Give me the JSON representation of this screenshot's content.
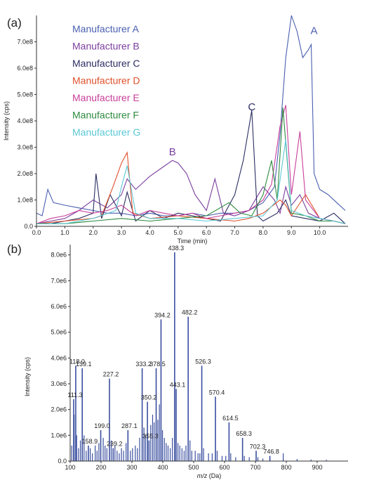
{
  "panel_labels": [
    "(a)",
    "(b)"
  ],
  "chart_data": [
    {
      "type": "line",
      "panel": "(a)",
      "xlabel": "Time (min)",
      "ylabel": "Intensity (cps)",
      "xlim": [
        0,
        11
      ],
      "ylim": [
        0,
        800000000.0
      ],
      "xticks": [
        0.0,
        1.0,
        2.0,
        3.0,
        4.0,
        5.0,
        6.0,
        7.0,
        8.0,
        9.0,
        10.0
      ],
      "xtick_labels": [
        "0.0",
        "1.0",
        "2.0",
        "3.0",
        "4.0",
        "5.0",
        "6.0",
        "7.0",
        "8.0",
        "9.0",
        "10.0"
      ],
      "yticks": [
        0,
        100000000.0,
        200000000.0,
        300000000.0,
        400000000.0,
        500000000.0,
        600000000.0,
        700000000.0
      ],
      "ytick_labels": [
        "0.0",
        "1.0e8",
        "2.0e8",
        "3.0e8",
        "4.0e8",
        "5.0e8",
        "6.0e8",
        "7.0e8"
      ],
      "legend_position": "top-left",
      "annotations": [
        {
          "text": "A",
          "x": 9.8,
          "y": 730000000.0,
          "color": "#4a5fb0"
        },
        {
          "text": "B",
          "x": 4.8,
          "y": 270000000.0,
          "color": "#7b3f9e"
        },
        {
          "text": "C",
          "x": 7.6,
          "y": 440000000.0,
          "color": "#2b2d62"
        }
      ],
      "series": [
        {
          "name": "Manufacturer  A",
          "color": "#4a5fb0",
          "x": [
            0,
            0.2,
            0.4,
            0.6,
            1.0,
            1.5,
            2.0,
            2.5,
            3.0,
            3.5,
            4.0,
            4.5,
            5.0,
            5.5,
            6.0,
            6.5,
            7.0,
            7.5,
            8.0,
            8.4,
            8.6,
            8.8,
            9.0,
            9.2,
            9.4,
            9.6,
            9.7,
            9.8,
            10.0,
            10.3,
            10.6,
            10.9
          ],
          "y": [
            50000000.0,
            40000000.0,
            140000000.0,
            90000000.0,
            80000000.0,
            70000000.0,
            60000000.0,
            50000000.0,
            50000000.0,
            40000000.0,
            50000000.0,
            40000000.0,
            40000000.0,
            50000000.0,
            40000000.0,
            50000000.0,
            50000000.0,
            60000000.0,
            90000000.0,
            150000000.0,
            350000000.0,
            640000000.0,
            800000000.0,
            740000000.0,
            640000000.0,
            670000000.0,
            690000000.0,
            200000000.0,
            140000000.0,
            120000000.0,
            90000000.0,
            60000000.0
          ]
        },
        {
          "name": "Manufacturer  B",
          "color": "#7b3f9e",
          "x": [
            0,
            0.5,
            1.0,
            1.5,
            2.0,
            2.5,
            3.0,
            3.2,
            3.5,
            4.0,
            4.4,
            4.8,
            5.0,
            5.3,
            5.6,
            6.0,
            6.3,
            6.6,
            7.0,
            7.5,
            8.0,
            8.4,
            8.6,
            8.8,
            9.0,
            9.3,
            9.6,
            10.0,
            10.5,
            10.9
          ],
          "y": [
            10000000.0,
            20000000.0,
            30000000.0,
            60000000.0,
            100000000.0,
            70000000.0,
            120000000.0,
            180000000.0,
            140000000.0,
            190000000.0,
            220000000.0,
            250000000.0,
            240000000.0,
            200000000.0,
            120000000.0,
            60000000.0,
            180000000.0,
            50000000.0,
            40000000.0,
            60000000.0,
            150000000.0,
            100000000.0,
            50000000.0,
            150000000.0,
            80000000.0,
            120000000.0,
            50000000.0,
            30000000.0,
            20000000.0,
            10000000.0
          ]
        },
        {
          "name": "Manufacturer  C",
          "color": "#2b2d62",
          "x": [
            0,
            0.5,
            1.0,
            1.5,
            2.0,
            2.1,
            2.3,
            2.6,
            3.0,
            3.2,
            3.5,
            4.0,
            4.5,
            5.0,
            5.5,
            6.0,
            6.5,
            7.0,
            7.3,
            7.6,
            7.8,
            8.0,
            8.5,
            8.8,
            9.0,
            9.5,
            10.0,
            10.5,
            10.9
          ],
          "y": [
            10000000.0,
            10000000.0,
            20000000.0,
            30000000.0,
            50000000.0,
            200000000.0,
            30000000.0,
            120000000.0,
            40000000.0,
            130000000.0,
            20000000.0,
            60000000.0,
            30000000.0,
            50000000.0,
            40000000.0,
            30000000.0,
            20000000.0,
            120000000.0,
            250000000.0,
            440000000.0,
            40000000.0,
            20000000.0,
            50000000.0,
            100000000.0,
            40000000.0,
            30000000.0,
            20000000.0,
            50000000.0,
            10000000.0
          ]
        },
        {
          "name": "Manufacturer  D",
          "color": "#e0502b",
          "x": [
            0,
            1.0,
            2.0,
            2.3,
            2.7,
            3.0,
            3.2,
            3.4,
            4.0,
            5.0,
            6.0,
            7.0,
            7.5,
            8.0,
            8.6,
            8.8,
            9.0,
            9.5,
            10.0,
            10.5,
            10.9
          ],
          "y": [
            10000000.0,
            20000000.0,
            30000000.0,
            40000000.0,
            150000000.0,
            240000000.0,
            280000000.0,
            50000000.0,
            30000000.0,
            40000000.0,
            30000000.0,
            20000000.0,
            30000000.0,
            50000000.0,
            100000000.0,
            80000000.0,
            40000000.0,
            120000000.0,
            30000000.0,
            20000000.0,
            10000000.0
          ]
        },
        {
          "name": "Manufacturer  E",
          "color": "#c83f9b",
          "x": [
            0,
            0.5,
            1.0,
            1.5,
            2.0,
            2.5,
            3.0,
            3.5,
            4.0,
            4.5,
            5.0,
            5.5,
            6.0,
            6.5,
            7.0,
            7.5,
            8.0,
            8.3,
            8.6,
            8.8,
            9.0,
            9.3,
            9.5,
            10.0,
            10.5,
            10.9
          ],
          "y": [
            10000000.0,
            30000000.0,
            40000000.0,
            60000000.0,
            50000000.0,
            60000000.0,
            80000000.0,
            40000000.0,
            60000000.0,
            50000000.0,
            40000000.0,
            50000000.0,
            30000000.0,
            40000000.0,
            50000000.0,
            60000000.0,
            100000000.0,
            160000000.0,
            380000000.0,
            460000000.0,
            120000000.0,
            360000000.0,
            100000000.0,
            30000000.0,
            20000000.0,
            10000000.0
          ]
        },
        {
          "name": "Manufacturer  F",
          "color": "#2e8b3f",
          "x": [
            0,
            1.0,
            2.0,
            3.0,
            4.0,
            5.0,
            6.0,
            6.8,
            7.2,
            7.6,
            8.0,
            8.3,
            8.5,
            8.7,
            9.0,
            9.5,
            10.0,
            10.5,
            10.9
          ],
          "y": [
            10000000.0,
            10000000.0,
            20000000.0,
            30000000.0,
            20000000.0,
            30000000.0,
            40000000.0,
            90000000.0,
            50000000.0,
            40000000.0,
            120000000.0,
            250000000.0,
            100000000.0,
            450000000.0,
            50000000.0,
            40000000.0,
            20000000.0,
            20000000.0,
            10000000.0
          ]
        },
        {
          "name": "Manufacturer  G",
          "color": "#5bc8d6",
          "x": [
            0,
            1.0,
            2.0,
            2.8,
            3.0,
            3.2,
            3.5,
            4.0,
            5.0,
            6.0,
            7.0,
            8.0,
            8.5,
            8.8,
            9.0,
            9.5,
            10.0,
            10.5,
            10.9
          ],
          "y": [
            10000000.0,
            10000000.0,
            30000000.0,
            60000000.0,
            150000000.0,
            230000000.0,
            50000000.0,
            30000000.0,
            30000000.0,
            20000000.0,
            30000000.0,
            40000000.0,
            100000000.0,
            330000000.0,
            60000000.0,
            40000000.0,
            30000000.0,
            20000000.0,
            10000000.0
          ]
        }
      ]
    },
    {
      "type": "bar",
      "panel": "(b)",
      "xlabel_italic": "m/z",
      "xlabel_rest": " (Da)",
      "ylabel": "Intensity (cps)",
      "xlim": [
        100,
        1000
      ],
      "ylim": [
        0,
        8400000.0
      ],
      "xticks": [
        100,
        200,
        300,
        400,
        500,
        600,
        700,
        800,
        900
      ],
      "xtick_labels": [
        "100",
        "200",
        "300",
        "400",
        "500",
        "600",
        "700",
        "800",
        "900"
      ],
      "yticks": [
        0,
        1000000.0,
        2000000.0,
        3000000.0,
        4000000.0,
        5000000.0,
        6000000.0,
        7000000.0,
        8000000.0
      ],
      "ytick_labels": [
        "0.0",
        "1.0e6",
        "2.0e6",
        "3.0e6",
        "4.0e6",
        "5.0e6",
        "6.0e6",
        "7.0e6",
        "8.0e6"
      ],
      "labeled_peaks": [
        {
          "mz": 111.3,
          "intensity": 2400000.0,
          "label": "111.3"
        },
        {
          "mz": 118.0,
          "intensity": 3700000.0,
          "label": "118.0"
        },
        {
          "mz": 139.1,
          "intensity": 3600000.0,
          "label": "139.1"
        },
        {
          "mz": 158.9,
          "intensity": 600000.0,
          "label": "158.9"
        },
        {
          "mz": 199.0,
          "intensity": 1200000.0,
          "label": "199.0"
        },
        {
          "mz": 227.2,
          "intensity": 3200000.0,
          "label": "227.2"
        },
        {
          "mz": 239.2,
          "intensity": 500000.0,
          "label": "239.2"
        },
        {
          "mz": 287.1,
          "intensity": 1200000.0,
          "label": "287.1"
        },
        {
          "mz": 333.2,
          "intensity": 3600000.0,
          "label": "333.2"
        },
        {
          "mz": 350.2,
          "intensity": 2300000.0,
          "label": "350.2"
        },
        {
          "mz": 355.3,
          "intensity": 800000.0,
          "label": "355.3"
        },
        {
          "mz": 378.5,
          "intensity": 3600000.0,
          "label": "378.5"
        },
        {
          "mz": 394.2,
          "intensity": 5500000.0,
          "label": "394.2"
        },
        {
          "mz": 438.3,
          "intensity": 8100000.0,
          "label": "438.3"
        },
        {
          "mz": 443.1,
          "intensity": 2800000.0,
          "label": "443.1"
        },
        {
          "mz": 482.2,
          "intensity": 5600000.0,
          "label": "482.2"
        },
        {
          "mz": 526.3,
          "intensity": 3700000.0,
          "label": "526.3"
        },
        {
          "mz": 570.4,
          "intensity": 2500000.0,
          "label": "570.4"
        },
        {
          "mz": 614.5,
          "intensity": 1500000.0,
          "label": "614.5"
        },
        {
          "mz": 658.3,
          "intensity": 900000.0,
          "label": "658.3"
        },
        {
          "mz": 702.3,
          "intensity": 400000.0,
          "label": "702.3"
        },
        {
          "mz": 746.8,
          "intensity": 200000.0,
          "label": "746.8"
        }
      ],
      "minor_peaks": [
        {
          "mz": 105,
          "intensity": 600000.0
        },
        {
          "mz": 113,
          "intensity": 1800000.0
        },
        {
          "mz": 121,
          "intensity": 1000000.0
        },
        {
          "mz": 127,
          "intensity": 500000.0
        },
        {
          "mz": 133,
          "intensity": 800000.0
        },
        {
          "mz": 145,
          "intensity": 1000000.0
        },
        {
          "mz": 152,
          "intensity": 400000.0
        },
        {
          "mz": 165,
          "intensity": 500000.0
        },
        {
          "mz": 172,
          "intensity": 300000.0
        },
        {
          "mz": 181,
          "intensity": 600000.0
        },
        {
          "mz": 187,
          "intensity": 400000.0
        },
        {
          "mz": 193,
          "intensity": 700000.0
        },
        {
          "mz": 207,
          "intensity": 900000.0
        },
        {
          "mz": 213,
          "intensity": 600000.0
        },
        {
          "mz": 219,
          "intensity": 500000.0
        },
        {
          "mz": 233,
          "intensity": 800000.0
        },
        {
          "mz": 245,
          "intensity": 600000.0
        },
        {
          "mz": 252,
          "intensity": 400000.0
        },
        {
          "mz": 259,
          "intensity": 300000.0
        },
        {
          "mz": 266,
          "intensity": 500000.0
        },
        {
          "mz": 273,
          "intensity": 400000.0
        },
        {
          "mz": 281,
          "intensity": 700000.0
        },
        {
          "mz": 295,
          "intensity": 400000.0
        },
        {
          "mz": 302,
          "intensity": 500000.0
        },
        {
          "mz": 311,
          "intensity": 600000.0
        },
        {
          "mz": 318,
          "intensity": 500000.0
        },
        {
          "mz": 325,
          "intensity": 900000.0
        },
        {
          "mz": 339,
          "intensity": 1300000.0
        },
        {
          "mz": 344,
          "intensity": 1000000.0
        },
        {
          "mz": 361,
          "intensity": 1400000.0
        },
        {
          "mz": 367,
          "intensity": 1800000.0
        },
        {
          "mz": 372,
          "intensity": 1500000.0
        },
        {
          "mz": 384,
          "intensity": 1600000.0
        },
        {
          "mz": 389,
          "intensity": 2200000.0
        },
        {
          "mz": 399,
          "intensity": 1200000.0
        },
        {
          "mz": 405,
          "intensity": 900000.0
        },
        {
          "mz": 411,
          "intensity": 700000.0
        },
        {
          "mz": 417,
          "intensity": 600000.0
        },
        {
          "mz": 424,
          "intensity": 500000.0
        },
        {
          "mz": 431,
          "intensity": 900000.0
        },
        {
          "mz": 449,
          "intensity": 700000.0
        },
        {
          "mz": 455,
          "intensity": 600000.0
        },
        {
          "mz": 462,
          "intensity": 500000.0
        },
        {
          "mz": 469,
          "intensity": 400000.0
        },
        {
          "mz": 475,
          "intensity": 600000.0
        },
        {
          "mz": 488,
          "intensity": 800000.0
        },
        {
          "mz": 494,
          "intensity": 400000.0
        },
        {
          "mz": 505,
          "intensity": 400000.0
        },
        {
          "mz": 514,
          "intensity": 300000.0
        },
        {
          "mz": 520,
          "intensity": 300000.0
        },
        {
          "mz": 532,
          "intensity": 500000.0
        },
        {
          "mz": 548,
          "intensity": 300000.0
        },
        {
          "mz": 560,
          "intensity": 300000.0
        },
        {
          "mz": 576,
          "intensity": 400000.0
        },
        {
          "mz": 592,
          "intensity": 200000.0
        },
        {
          "mz": 604,
          "intensity": 200000.0
        },
        {
          "mz": 620,
          "intensity": 300000.0
        },
        {
          "mz": 636,
          "intensity": 150000.0
        },
        {
          "mz": 664,
          "intensity": 200000.0
        },
        {
          "mz": 680,
          "intensity": 150000.0
        },
        {
          "mz": 708,
          "intensity": 150000.0
        },
        {
          "mz": 724,
          "intensity": 100000.0
        },
        {
          "mz": 790,
          "intensity": 300000.0
        },
        {
          "mz": 835,
          "intensity": 80000.0
        },
        {
          "mz": 880,
          "intensity": 60000.0
        },
        {
          "mz": 930,
          "intensity": 50000.0
        }
      ]
    }
  ]
}
